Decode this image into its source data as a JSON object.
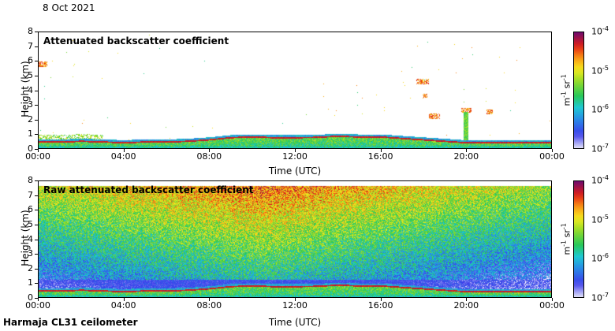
{
  "header": {
    "date": "8 Oct 2021"
  },
  "footer": {
    "station": "Harmaja CL31 ceilometer"
  },
  "colorbar": {
    "unit_main": "m",
    "unit_exp1": "-1",
    "unit_mid": " sr",
    "unit_exp2": "-1",
    "tick_labels": [
      {
        "base": "10",
        "exp": "-4"
      },
      {
        "base": "10",
        "exp": "-5"
      },
      {
        "base": "10",
        "exp": "-6"
      },
      {
        "base": "10",
        "exp": "-7"
      }
    ]
  },
  "chart_data": [
    {
      "type": "heatmap",
      "title": "Attenuated backscatter coefficient",
      "xlabel": "Time (UTC)",
      "ylabel": "Height (km)",
      "x_tick_labels": [
        "00:00",
        "04:00",
        "08:00",
        "12:00",
        "16:00",
        "20:00",
        "00:00"
      ],
      "y_tick_labels": [
        "0",
        "1",
        "2",
        "3",
        "4",
        "5",
        "6",
        "7",
        "8"
      ],
      "xlim_hours": [
        0,
        24
      ],
      "ylim_km": [
        0,
        8
      ],
      "color_scale": "log",
      "clim": [
        "1e-7",
        "1e-4"
      ],
      "features": {
        "boundary_layer_top_km_by_hour": [
          0.4,
          0.4,
          0.45,
          0.4,
          0.35,
          0.4,
          0.4,
          0.45,
          0.55,
          0.7,
          0.75,
          0.7,
          0.7,
          0.72,
          0.8,
          0.75,
          0.75,
          0.65,
          0.55,
          0.45,
          0.35,
          0.35,
          0.35,
          0.35
        ],
        "cloud_patches": [
          {
            "hour_start": 17.7,
            "hour_end": 18.3,
            "height_km": 4.6
          },
          {
            "hour_start": 18.0,
            "hour_end": 18.2,
            "height_km": 3.6
          },
          {
            "hour_start": 18.3,
            "hour_end": 18.8,
            "height_km": 2.2
          },
          {
            "hour_start": 19.8,
            "hour_end": 20.3,
            "height_km": 2.6
          },
          {
            "hour_start": 21.0,
            "hour_end": 21.3,
            "height_km": 2.5
          },
          {
            "hour_start": 0.0,
            "hour_end": 0.4,
            "height_km": 5.8
          }
        ]
      }
    },
    {
      "type": "heatmap",
      "title": "Raw attenuated backscatter coefficient",
      "xlabel": "Time (UTC)",
      "ylabel": "Height (km)",
      "x_tick_labels": [
        "00:00",
        "04:00",
        "08:00",
        "12:00",
        "16:00",
        "20:00",
        "00:00"
      ],
      "y_tick_labels": [
        "0",
        "1",
        "2",
        "3",
        "4",
        "5",
        "6",
        "7",
        "8"
      ],
      "xlim_hours": [
        0,
        24
      ],
      "ylim_km": [
        0,
        8
      ],
      "color_scale": "log",
      "clim": [
        "1e-7",
        "1e-4"
      ],
      "features": {
        "noise_peak_hour": 10.5,
        "boundary_layer_top_km_by_hour": [
          0.4,
          0.4,
          0.45,
          0.4,
          0.35,
          0.4,
          0.4,
          0.45,
          0.55,
          0.7,
          0.75,
          0.7,
          0.7,
          0.72,
          0.8,
          0.75,
          0.75,
          0.65,
          0.55,
          0.45,
          0.35,
          0.35,
          0.35,
          0.35
        ]
      }
    }
  ]
}
